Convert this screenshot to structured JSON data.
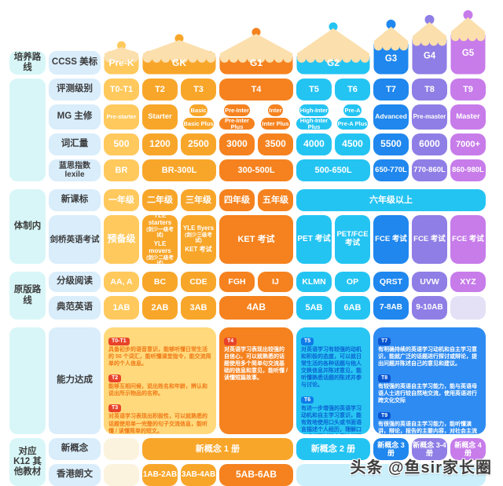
{
  "groups": {
    "path": "培养路线",
    "system": "体制内",
    "original": "原版路线",
    "k12": "对应 K12 其他教材"
  },
  "row_labels": {
    "ccss": "CCSS 美标",
    "level": "评测级别",
    "mg": "MG 主修",
    "vocab": "词汇量",
    "lexile": "蓝思指数 lexile",
    "curriculum": "新课标",
    "cambridge": "剑桥英语考试",
    "reading": "分级阅读",
    "classic": "典范英语",
    "ability": "能力达成",
    "concept": "新概念",
    "longman": "香港朗文"
  },
  "grades": [
    {
      "label": "Pre-K",
      "color": "#FFC95D"
    },
    {
      "label": "GK",
      "color": "#F8A62A"
    },
    {
      "label": "G1",
      "color": "#F5821F"
    },
    {
      "label": "G2",
      "color": "#24C4F2"
    },
    {
      "label": "G3",
      "color": "#1F87EE"
    },
    {
      "label": "G4",
      "color": "#8F7EE5"
    },
    {
      "label": "G5",
      "color": "#C77CEA"
    }
  ],
  "levels": [
    "T0-T1",
    "T2",
    "T3",
    "T4",
    "T5",
    "T6",
    "T7",
    "T8",
    "T9"
  ],
  "mg": {
    "prestarter": "Pre-starter",
    "starter": "Starter",
    "basic": "Basic",
    "basic_plus": "Basic Plus",
    "preinter": "Pre-Inter",
    "preinter_plus": "Pre-Inter Plus",
    "inter": "Inter",
    "inter_plus": "Inter Plus",
    "highinter": "High-Inter",
    "highinter_plus": "High-Inter Plus",
    "prea": "Pre-A",
    "prea_plus": "Pre-A Plus",
    "advanced": "Advanced",
    "premaster": "Pre-master",
    "master": "Master"
  },
  "vocab": [
    "500",
    "1200",
    "2500",
    "3000",
    "3500",
    "4000",
    "4500",
    "5500",
    "6000",
    "7000+"
  ],
  "lexile": [
    "BR",
    "BR-300L",
    "300-500L",
    "500-650L",
    "650-770L",
    "770-860L",
    "860-980L"
  ],
  "curriculum": [
    "一年级",
    "二年级",
    "三年级",
    "四年级",
    "五年级",
    "六年级以上"
  ],
  "cambridge": {
    "prep": "预备级",
    "t2_top": "YLE starters",
    "t2_top_sub": "(剑少一级考试)",
    "t2_bottom": "YLE movers",
    "t2_bottom_sub": "(剑少二级考试)",
    "t3_top": "YLE flyers",
    "t3_top_sub": "(剑少三级考试)",
    "t3_bottom": "KET 考试",
    "t4": "KET 考试",
    "t5": "PET 考试",
    "t6": "PET/FCE 考试",
    "t7": "FCE 考试",
    "t8": "FCE 考试",
    "t9": "FCE 考试"
  },
  "reading": [
    "AA, A",
    "BC",
    "CDE",
    "FGH",
    "IJ",
    "KLMN",
    "OP",
    "QRST",
    "UVW",
    "XYZ"
  ],
  "classic": [
    "1AB",
    "2AB",
    "3AB",
    "4AB",
    "5AB",
    "6AB",
    "7-8AB",
    "9-10AB"
  ],
  "ability": {
    "block1": [
      {
        "tag": "T0-T1",
        "text": "具备初步的语音意识，能够听懂日常生活的 50 个词汇，能听懂课堂指令，能交流简单的个人信息。"
      },
      {
        "tag": "T2",
        "text": "能够互相问候，说出姓名和年龄，辨认和说出所示物品的名称。"
      },
      {
        "tag": "T3",
        "text": "对英语学习表现出积极性，可以就熟悉的话题使用单一完整的句子交流信息，能听懂 / 读懂简单的短文。"
      }
    ],
    "block2": [
      {
        "tag": "T4",
        "text": "对英语学习表现出较强的自信心，可以就熟悉的话题使用多个简单句交流基础的信息和意见，能听懂 / 读懂短篇故事。"
      }
    ],
    "block3": [
      {
        "tag": "T5",
        "text": "对英语学习有较强的动机和积极的态度，可以就日常生活的各种话题与他人交换信息并陈述意见，能听懂熟悉话题的陈述并参与讨论。"
      },
      {
        "tag": "T6",
        "text": "有进一步增强的英语学习动机和自主学习意识，能有效地使用口头或书面语言描述个人经历，理解口头或书面材料中表达的观点并发表自己的见解。"
      }
    ],
    "block4": [
      {
        "tag": "T7",
        "text": "有明确持续的英语学习动机和自主学习意识，能就广泛的话题进行探讨或辩论，提出问题并陈述自己的意见和建议。"
      },
      {
        "tag": "T8",
        "text": "有较强的英语自主学习能力，能与英语母语人士进行较自然地交流，使用英语进行跨文化交际"
      },
      {
        "tag": "T9",
        "text": "有很强的英语自主学习能力，能听懂演讲，辩论，报告的主要内容，对社会主流现象和问题发表独到的评论和见解，拥有国际化视野。"
      }
    ]
  },
  "concept": {
    "v1": "新概念 1 册",
    "v2": "新概念 2 册",
    "v3": "新概念 3 册",
    "v34": "新概念 3-4 册",
    "v4": "新概念 4 册"
  },
  "longman": [
    "1AB-2AB",
    "3AB-4AB",
    "5AB-6AB"
  ],
  "watermark": "头条 @鱼sir家长圈"
}
